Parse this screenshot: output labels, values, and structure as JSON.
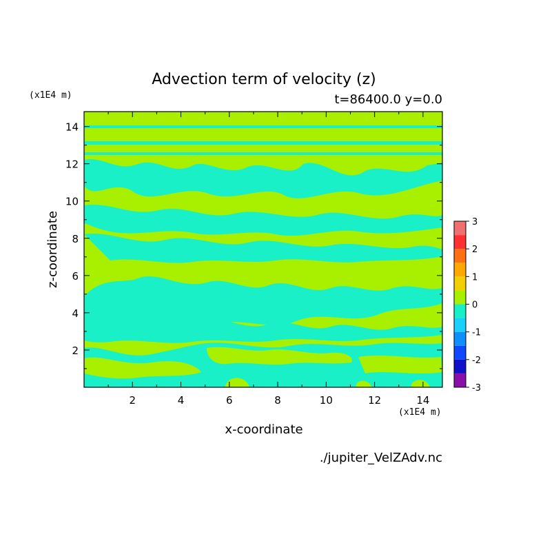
{
  "chart_data": {
    "type": "heatmap",
    "title": "Advection term of velocity (z)",
    "subtitle": "t=86400.0 y=0.0",
    "xlabel": "x-coordinate",
    "ylabel": "z-coordinate",
    "x_unit": "(x1E4 m)",
    "y_unit": "(x1E4 m)",
    "source": "./jupiter_VelZAdv.nc",
    "xlim": [
      0,
      14.8
    ],
    "ylim": [
      0,
      14.8
    ],
    "x_ticks": [
      2,
      4,
      6,
      8,
      10,
      12,
      14
    ],
    "y_ticks": [
      2,
      4,
      6,
      8,
      10,
      12,
      14
    ],
    "colorbar": {
      "levels": [
        -3,
        -2.5,
        -2,
        -1.5,
        -1,
        -0.5,
        0,
        0.5,
        1,
        1.5,
        2,
        2.5,
        3
      ],
      "tick_labels": [
        "3",
        "2",
        "1",
        "0",
        "-1",
        "-2",
        "-3"
      ],
      "colors": [
        "#8a0fa8",
        "#1010c8",
        "#1048ff",
        "#1090ff",
        "#1ad0ff",
        "#1af0c8",
        "#a8f000",
        "#f0d000",
        "#ffa800",
        "#ff7010",
        "#ff3030",
        "#f07070",
        "#ffb0b0"
      ]
    },
    "dominant_fields": {
      "positive_near_zero_color": "#a8f000",
      "negative_near_zero_color": "#1af0c8"
    }
  }
}
